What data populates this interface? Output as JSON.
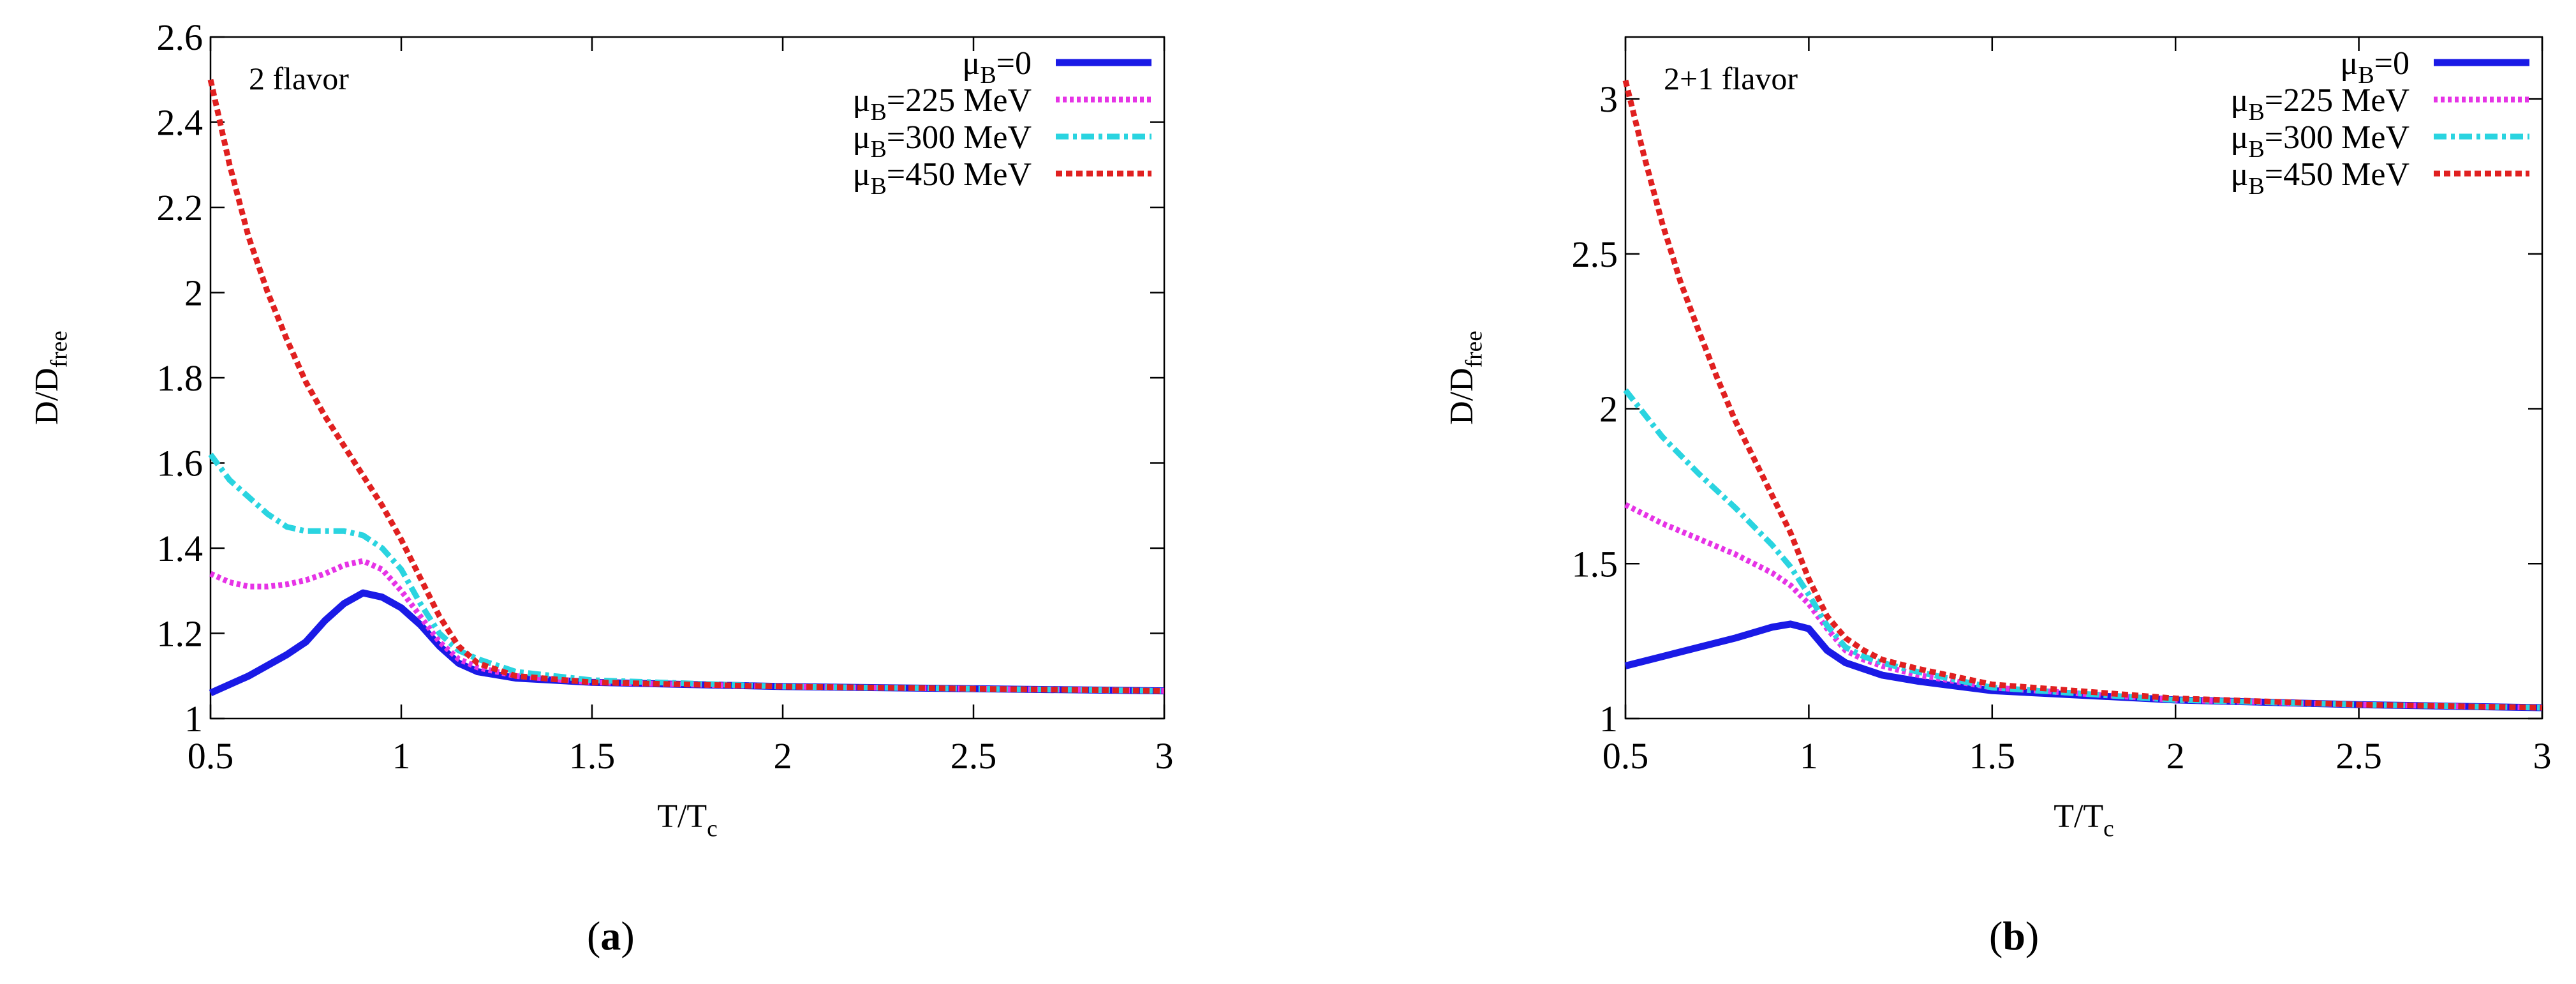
{
  "chart_data": [
    {
      "type": "line",
      "panel_label": "a",
      "annotation": "2 flavor",
      "xlabel": "T/T",
      "xlabel_sub": "c",
      "ylabel": "D/D",
      "ylabel_sub": "free",
      "xlim": [
        0.5,
        3
      ],
      "ylim": [
        1,
        2.6
      ],
      "xticks": [
        "0.5",
        "1",
        "1.5",
        "2",
        "2.5",
        "3"
      ],
      "xtick_values": [
        0.5,
        1,
        1.5,
        2,
        2.5,
        3
      ],
      "yticks": [
        "1",
        "1.2",
        "1.4",
        "1.6",
        "1.8",
        "2",
        "2.2",
        "2.4",
        "2.6"
      ],
      "ytick_values": [
        1,
        1.2,
        1.4,
        1.6,
        1.8,
        2,
        2.2,
        2.4,
        2.6
      ],
      "legend_position": "top-right",
      "series": [
        {
          "name": "μ",
          "sub": "B",
          "suffix": "=0",
          "color": "#1a1ae6",
          "style": "solid",
          "x": [
            0.5,
            0.6,
            0.7,
            0.75,
            0.8,
            0.85,
            0.9,
            0.95,
            1.0,
            1.05,
            1.1,
            1.15,
            1.2,
            1.3,
            1.5,
            2.0,
            2.5,
            3.0
          ],
          "y": [
            1.06,
            1.1,
            1.15,
            1.18,
            1.23,
            1.27,
            1.295,
            1.285,
            1.26,
            1.22,
            1.17,
            1.13,
            1.11,
            1.095,
            1.085,
            1.075,
            1.07,
            1.065
          ]
        },
        {
          "name": "μ",
          "sub": "B",
          "suffix": "=225 MeV",
          "color": "#e633e6",
          "style": "dotted",
          "x": [
            0.5,
            0.55,
            0.6,
            0.65,
            0.7,
            0.75,
            0.8,
            0.85,
            0.9,
            0.95,
            1.0,
            1.05,
            1.1,
            1.15,
            1.2,
            1.3,
            1.5,
            2.0,
            2.5,
            3.0
          ],
          "y": [
            1.34,
            1.32,
            1.31,
            1.31,
            1.315,
            1.325,
            1.34,
            1.36,
            1.37,
            1.35,
            1.3,
            1.24,
            1.18,
            1.14,
            1.12,
            1.1,
            1.085,
            1.075,
            1.07,
            1.065
          ]
        },
        {
          "name": "μ",
          "sub": "B",
          "suffix": "=300 MeV",
          "color": "#2ad4e0",
          "style": "dashdot",
          "x": [
            0.5,
            0.55,
            0.6,
            0.65,
            0.7,
            0.75,
            0.8,
            0.85,
            0.9,
            0.95,
            1.0,
            1.05,
            1.1,
            1.15,
            1.2,
            1.3,
            1.5,
            2.0,
            2.5,
            3.0
          ],
          "y": [
            1.62,
            1.56,
            1.52,
            1.48,
            1.45,
            1.44,
            1.44,
            1.44,
            1.43,
            1.4,
            1.35,
            1.27,
            1.2,
            1.16,
            1.14,
            1.11,
            1.09,
            1.075,
            1.07,
            1.065
          ]
        },
        {
          "name": "μ",
          "sub": "B",
          "suffix": "=450 MeV",
          "color": "#e02020",
          "style": "dashed",
          "x": [
            0.5,
            0.55,
            0.6,
            0.65,
            0.7,
            0.75,
            0.8,
            0.85,
            0.9,
            0.95,
            1.0,
            1.05,
            1.1,
            1.15,
            1.2,
            1.3,
            1.5,
            2.0,
            2.5,
            3.0
          ],
          "y": [
            2.5,
            2.3,
            2.13,
            2.0,
            1.89,
            1.79,
            1.71,
            1.64,
            1.57,
            1.5,
            1.42,
            1.33,
            1.24,
            1.17,
            1.13,
            1.1,
            1.085,
            1.075,
            1.07,
            1.065
          ]
        }
      ]
    },
    {
      "type": "line",
      "panel_label": "b",
      "annotation": "2+1 flavor",
      "xlabel": "T/T",
      "xlabel_sub": "c",
      "ylabel": "D/D",
      "ylabel_sub": "free",
      "xlim": [
        0.5,
        3
      ],
      "ylim": [
        1,
        3.2
      ],
      "xticks": [
        "0.5",
        "1",
        "1.5",
        "2",
        "2.5",
        "3"
      ],
      "xtick_values": [
        0.5,
        1,
        1.5,
        2,
        2.5,
        3
      ],
      "yticks": [
        "1",
        "1.5",
        "2",
        "2.5",
        "3"
      ],
      "ytick_values": [
        1,
        1.5,
        2,
        2.5,
        3
      ],
      "legend_position": "top-right",
      "series": [
        {
          "name": "μ",
          "sub": "B",
          "suffix": "=0",
          "color": "#1a1ae6",
          "style": "solid",
          "x": [
            0.5,
            0.6,
            0.7,
            0.8,
            0.9,
            0.95,
            1.0,
            1.05,
            1.1,
            1.15,
            1.2,
            1.3,
            1.5,
            2.0,
            2.5,
            3.0
          ],
          "y": [
            1.17,
            1.2,
            1.23,
            1.26,
            1.295,
            1.305,
            1.29,
            1.22,
            1.18,
            1.16,
            1.14,
            1.12,
            1.09,
            1.06,
            1.045,
            1.035
          ]
        },
        {
          "name": "μ",
          "sub": "B",
          "suffix": "=225 MeV",
          "color": "#e633e6",
          "style": "dotted",
          "x": [
            0.5,
            0.6,
            0.7,
            0.8,
            0.9,
            0.95,
            1.0,
            1.05,
            1.1,
            1.15,
            1.2,
            1.3,
            1.5,
            2.0,
            2.5,
            3.0
          ],
          "y": [
            1.69,
            1.63,
            1.58,
            1.53,
            1.47,
            1.43,
            1.37,
            1.29,
            1.22,
            1.19,
            1.17,
            1.14,
            1.1,
            1.06,
            1.045,
            1.035
          ]
        },
        {
          "name": "μ",
          "sub": "B",
          "suffix": "=300 MeV",
          "color": "#2ad4e0",
          "style": "dashdot",
          "x": [
            0.5,
            0.6,
            0.7,
            0.8,
            0.9,
            0.95,
            1.0,
            1.05,
            1.1,
            1.15,
            1.2,
            1.3,
            1.5,
            2.0,
            2.5,
            3.0
          ],
          "y": [
            2.06,
            1.91,
            1.79,
            1.68,
            1.56,
            1.49,
            1.4,
            1.3,
            1.23,
            1.2,
            1.18,
            1.15,
            1.1,
            1.06,
            1.045,
            1.035
          ]
        },
        {
          "name": "μ",
          "sub": "B",
          "suffix": "=450 MeV",
          "color": "#e02020",
          "style": "dashed",
          "x": [
            0.5,
            0.55,
            0.6,
            0.65,
            0.7,
            0.75,
            0.8,
            0.85,
            0.9,
            0.95,
            1.0,
            1.05,
            1.1,
            1.15,
            1.2,
            1.3,
            1.5,
            2.0,
            2.5,
            3.0
          ],
          "y": [
            3.06,
            2.82,
            2.6,
            2.41,
            2.25,
            2.1,
            1.96,
            1.84,
            1.72,
            1.6,
            1.45,
            1.33,
            1.26,
            1.22,
            1.19,
            1.16,
            1.11,
            1.065,
            1.045,
            1.035
          ]
        }
      ]
    }
  ]
}
